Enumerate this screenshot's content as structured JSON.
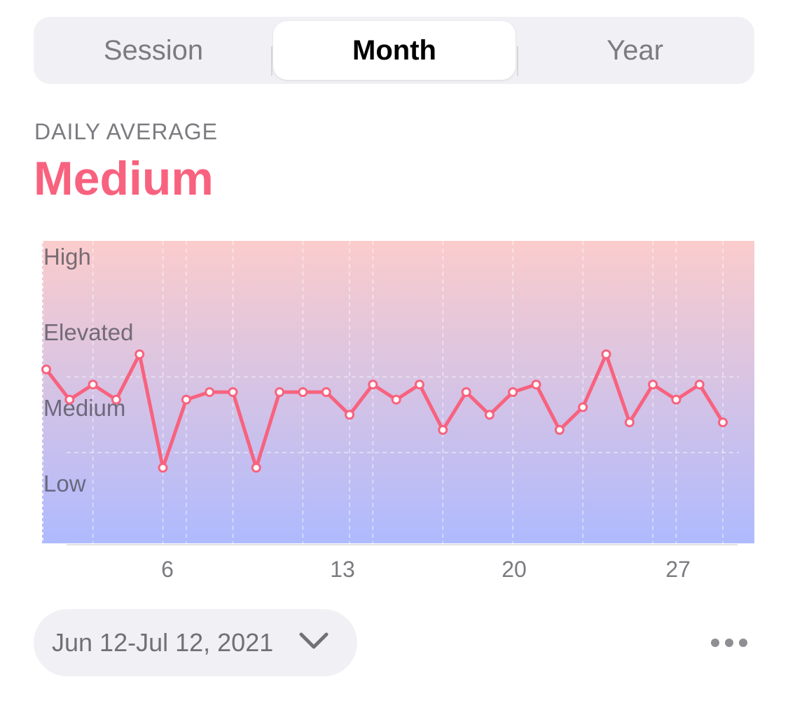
{
  "tabs": [
    {
      "label": "Session",
      "active": false
    },
    {
      "label": "Month",
      "active": true
    },
    {
      "label": "Year",
      "active": false
    }
  ],
  "summary": {
    "label": "DAILY AVERAGE",
    "value": "Medium",
    "accent_color": "#f8627e"
  },
  "date_range": {
    "label": "Jun 12-Jul 12, 2021",
    "icon": "chevron-down-icon"
  },
  "more_menu": {
    "icon": "ellipsis-icon"
  },
  "chart_data": {
    "type": "line",
    "levels": [
      "Low",
      "Medium",
      "Elevated",
      "High"
    ],
    "y_range": [
      0.3,
      4.3
    ],
    "x_ticks": [
      6,
      13,
      20,
      27
    ],
    "x_range": [
      0,
      29
    ],
    "gradient": {
      "top": "#fbcccc",
      "bottom": "#afbafe"
    },
    "line_color": "#f8627e",
    "series": [
      {
        "x": [
          0,
          1,
          2,
          3,
          4,
          5,
          6,
          7,
          8,
          9,
          10,
          11,
          12,
          13,
          14,
          15,
          16,
          17,
          18,
          19,
          20,
          21,
          22,
          23,
          24,
          25,
          26,
          27,
          28,
          29
        ],
        "values": [
          2.6,
          2.2,
          2.4,
          2.2,
          2.8,
          1.3,
          2.2,
          2.3,
          2.3,
          1.3,
          2.3,
          2.3,
          2.3,
          2.0,
          2.4,
          2.2,
          2.4,
          1.8,
          2.3,
          2.0,
          2.3,
          2.4,
          1.8,
          2.1,
          2.8,
          1.9,
          2.4,
          2.2,
          2.4,
          1.9
        ]
      }
    ]
  }
}
